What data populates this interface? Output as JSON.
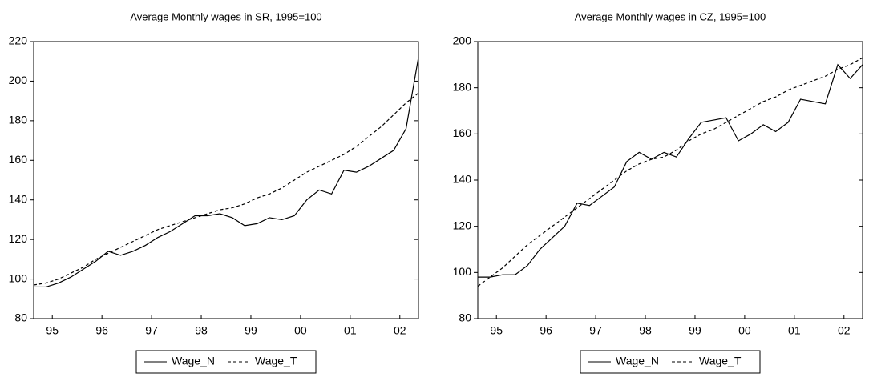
{
  "chart_data": [
    {
      "type": "line",
      "title": "Average Monthly wages in SR, 1995=100",
      "x": [
        1995,
        1995.25,
        1995.5,
        1995.75,
        1996,
        1996.25,
        1996.5,
        1996.75,
        1997,
        1997.25,
        1997.5,
        1997.75,
        1998,
        1998.25,
        1998.5,
        1998.75,
        1999,
        1999.25,
        1999.5,
        1999.75,
        2000,
        2000.25,
        2000.5,
        2000.75,
        2001,
        2001.25,
        2001.5,
        2001.75,
        2002,
        2002.25,
        2002.5,
        2002.75
      ],
      "xlim": [
        1995,
        2002.75
      ],
      "xticks": [
        {
          "value": 1995.375,
          "label": "95"
        },
        {
          "value": 1996.375,
          "label": "96"
        },
        {
          "value": 1997.375,
          "label": "97"
        },
        {
          "value": 1998.375,
          "label": "98"
        },
        {
          "value": 1999.375,
          "label": "99"
        },
        {
          "value": 2000.375,
          "label": "00"
        },
        {
          "value": 2001.375,
          "label": "01"
        },
        {
          "value": 2002.375,
          "label": "02"
        }
      ],
      "ylim": [
        80,
        220
      ],
      "yticks": [
        80,
        100,
        120,
        140,
        160,
        180,
        200,
        220
      ],
      "series": [
        {
          "name": "Wage_N",
          "color": "#000000",
          "dash": false,
          "values": [
            96,
            96,
            98,
            101,
            105,
            109,
            114,
            112,
            114,
            117,
            121,
            124,
            128,
            132,
            132,
            133,
            131,
            127,
            128,
            131,
            130,
            132,
            140,
            145,
            143,
            155,
            154,
            157,
            161,
            165,
            176,
            212
          ]
        },
        {
          "name": "Wage_T",
          "color": "#000000",
          "dash": true,
          "values": [
            97,
            98,
            100,
            103,
            106,
            110,
            113,
            116,
            119,
            122,
            125,
            127,
            129,
            131,
            133,
            135,
            136,
            138,
            141,
            143,
            146,
            150,
            154,
            157,
            160,
            163,
            167,
            172,
            177,
            183,
            189,
            194
          ]
        }
      ]
    },
    {
      "type": "line",
      "title": "Average Monthly wages in CZ, 1995=100",
      "x": [
        1995,
        1995.25,
        1995.5,
        1995.75,
        1996,
        1996.25,
        1996.5,
        1996.75,
        1997,
        1997.25,
        1997.5,
        1997.75,
        1998,
        1998.25,
        1998.5,
        1998.75,
        1999,
        1999.25,
        1999.5,
        1999.75,
        2000,
        2000.25,
        2000.5,
        2000.75,
        2001,
        2001.25,
        2001.5,
        2001.75,
        2002,
        2002.25,
        2002.5,
        2002.75
      ],
      "xlim": [
        1995,
        2002.75
      ],
      "xticks": [
        {
          "value": 1995.375,
          "label": "95"
        },
        {
          "value": 1996.375,
          "label": "96"
        },
        {
          "value": 1997.375,
          "label": "97"
        },
        {
          "value": 1998.375,
          "label": "98"
        },
        {
          "value": 1999.375,
          "label": "99"
        },
        {
          "value": 2000.375,
          "label": "00"
        },
        {
          "value": 2001.375,
          "label": "01"
        },
        {
          "value": 2002.375,
          "label": "02"
        }
      ],
      "ylim": [
        80,
        200
      ],
      "yticks": [
        80,
        100,
        120,
        140,
        160,
        180,
        200
      ],
      "series": [
        {
          "name": "Wage_N",
          "color": "#000000",
          "dash": false,
          "values": [
            98,
            98,
            99,
            99,
            103,
            110,
            115,
            120,
            130,
            129,
            133,
            137,
            148,
            152,
            149,
            152,
            150,
            158,
            165,
            166,
            167,
            157,
            160,
            164,
            161,
            165,
            175,
            174,
            173,
            190,
            184,
            190
          ]
        },
        {
          "name": "Wage_T",
          "color": "#000000",
          "dash": true,
          "values": [
            94,
            98,
            102,
            107,
            112,
            116,
            120,
            124,
            128,
            132,
            136,
            140,
            144,
            147,
            149,
            150,
            153,
            157,
            160,
            162,
            165,
            168,
            171,
            174,
            176,
            179,
            181,
            183,
            185,
            188,
            190,
            193
          ]
        }
      ]
    }
  ]
}
